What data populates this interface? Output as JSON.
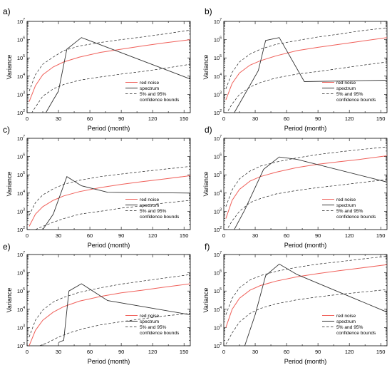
{
  "chart_data": [
    {
      "type": "line",
      "panel": "a)",
      "xlabel": "Period (month)",
      "ylabel": "Variance",
      "xlim": [
        0,
        156
      ],
      "xticks": [
        0,
        30,
        60,
        90,
        120,
        150
      ],
      "ylim_log10": [
        2,
        7
      ],
      "yscale": "log",
      "legend": [
        "red noise",
        "spectrum",
        "5% and 95%",
        "confidence bounds"
      ],
      "series": [
        {
          "name": "red noise",
          "x": [
            2,
            8,
            15,
            25,
            35,
            50,
            70,
            90,
            110,
            130,
            156
          ],
          "y": [
            400,
            3000,
            12000,
            32000,
            60000,
            110000,
            200000,
            300000,
            450000,
            650000,
            1000000
          ]
        },
        {
          "name": "spectrum",
          "x": [
            18,
            25,
            30,
            38,
            52,
            156
          ],
          "y": [
            100,
            500,
            1500,
            300000,
            1300000,
            7000
          ]
        },
        {
          "name": "5% bound",
          "x": [
            2,
            8,
            15,
            25,
            35,
            50,
            70,
            90,
            110,
            130,
            156
          ],
          "y": [
            60,
            200,
            800,
            2000,
            3500,
            6000,
            9000,
            13000,
            18000,
            26000,
            45000
          ]
        },
        {
          "name": "95% bound",
          "x": [
            2,
            8,
            15,
            25,
            35,
            50,
            70,
            90,
            110,
            130,
            156
          ],
          "y": [
            1500,
            12000,
            45000,
            110000,
            250000,
            450000,
            700000,
            1000000,
            1400000,
            2000000,
            3300000
          ]
        }
      ]
    },
    {
      "type": "line",
      "panel": "b)",
      "xlabel": "Period (month)",
      "ylabel": "Variance",
      "xlim": [
        0,
        156
      ],
      "xticks": [
        0,
        30,
        60,
        90,
        120,
        150
      ],
      "ylim_log10": [
        2,
        7
      ],
      "yscale": "log",
      "legend": [
        "red noise",
        "spectrum",
        "5% and 95%",
        "confidence bounds"
      ],
      "series": [
        {
          "name": "red noise",
          "x": [
            2,
            8,
            15,
            25,
            35,
            50,
            70,
            90,
            110,
            130,
            156
          ],
          "y": [
            500,
            4000,
            15000,
            40000,
            70000,
            130000,
            250000,
            380000,
            550000,
            800000,
            1300000
          ]
        },
        {
          "name": "spectrum",
          "x": [
            10,
            20,
            33,
            40,
            53,
            77,
            156
          ],
          "y": [
            100,
            1000,
            20000,
            900000,
            1300000,
            5000,
            6000
          ]
        },
        {
          "name": "5% bound",
          "x": [
            2,
            8,
            15,
            25,
            35,
            50,
            70,
            90,
            110,
            130,
            156
          ],
          "y": [
            80,
            300,
            1000,
            2500,
            4500,
            8000,
            13000,
            18000,
            26000,
            38000,
            60000
          ]
        },
        {
          "name": "95% bound",
          "x": [
            2,
            8,
            15,
            25,
            35,
            50,
            70,
            90,
            110,
            130,
            156
          ],
          "y": [
            2000,
            16000,
            60000,
            160000,
            300000,
            550000,
            900000,
            1400000,
            2000000,
            3000000,
            4500000
          ]
        }
      ]
    },
    {
      "type": "line",
      "panel": "c)",
      "xlabel": "Period (month)",
      "ylabel": "Variance",
      "xlim": [
        0,
        156
      ],
      "xticks": [
        0,
        30,
        60,
        90,
        120,
        150
      ],
      "ylim_log10": [
        2,
        7
      ],
      "yscale": "log",
      "legend": [
        "red noise",
        "spectrum",
        "5% and 95%",
        "confidence bounds"
      ],
      "series": [
        {
          "name": "red noise",
          "x": [
            2,
            8,
            15,
            25,
            35,
            50,
            70,
            90,
            110,
            130,
            156
          ],
          "y": [
            150,
            700,
            1800,
            4000,
            7000,
            12000,
            20000,
            30000,
            42000,
            58000,
            90000
          ]
        },
        {
          "name": "spectrum",
          "x": [
            15,
            25,
            38,
            52,
            77,
            156
          ],
          "y": [
            100,
            700,
            80000,
            25000,
            11000,
            10000
          ]
        },
        {
          "name": "5% bound",
          "x": [
            8,
            15,
            25,
            35,
            50,
            70,
            90,
            110,
            130,
            156
          ],
          "y": [
            100,
            150,
            250,
            400,
            700,
            1000,
            1500,
            2000,
            2800,
            4000
          ]
        },
        {
          "name": "95% bound",
          "x": [
            2,
            8,
            15,
            25,
            35,
            50,
            70,
            90,
            110,
            130,
            156
          ],
          "y": [
            600,
            3000,
            8000,
            17000,
            30000,
            50000,
            80000,
            110000,
            150000,
            200000,
            290000
          ]
        }
      ]
    },
    {
      "type": "line",
      "panel": "d)",
      "xlabel": "Period (month)",
      "ylabel": "Variance",
      "xlim": [
        0,
        156
      ],
      "xticks": [
        0,
        30,
        60,
        90,
        120,
        150
      ],
      "ylim_log10": [
        2,
        7
      ],
      "yscale": "log",
      "legend": [
        "red noise",
        "spectrum",
        "5% and 95%",
        "confidence bounds"
      ],
      "series": [
        {
          "name": "red noise",
          "x": [
            2,
            8,
            15,
            25,
            35,
            50,
            70,
            90,
            110,
            130,
            156
          ],
          "y": [
            400,
            4000,
            16000,
            45000,
            80000,
            140000,
            250000,
            380000,
            520000,
            700000,
            1100000
          ]
        },
        {
          "name": "spectrum",
          "x": [
            10,
            20,
            30,
            38,
            53,
            70,
            156
          ],
          "y": [
            100,
            1200,
            20000,
            200000,
            950000,
            700000,
            40000
          ]
        },
        {
          "name": "5% bound",
          "x": [
            2,
            8,
            15,
            25,
            35,
            50,
            70,
            90,
            110,
            130,
            156
          ],
          "y": [
            80,
            300,
            1000,
            3000,
            5000,
            9000,
            14000,
            20000,
            27000,
            37000,
            55000
          ]
        },
        {
          "name": "95% bound",
          "x": [
            2,
            8,
            15,
            25,
            35,
            50,
            70,
            90,
            110,
            130,
            156
          ],
          "y": [
            1800,
            15000,
            60000,
            160000,
            300000,
            500000,
            850000,
            1300000,
            1800000,
            2400000,
            3400000
          ]
        }
      ]
    },
    {
      "type": "line",
      "panel": "e)",
      "xlabel": "Period (month)",
      "ylabel": "Variance",
      "xlim": [
        0,
        156
      ],
      "xticks": [
        0,
        30,
        60,
        90,
        120,
        150
      ],
      "ylim_log10": [
        2,
        7
      ],
      "yscale": "log",
      "legend": [
        "red noise",
        "spectrum",
        "5% and 95%",
        "confidence bounds"
      ],
      "series": [
        {
          "name": "red noise",
          "x": [
            2,
            8,
            15,
            25,
            35,
            50,
            70,
            90,
            110,
            130,
            156
          ],
          "y": [
            100,
            700,
            2500,
            7000,
            14000,
            28000,
            50000,
            80000,
            110000,
            160000,
            250000
          ]
        },
        {
          "name": "spectrum",
          "x": [
            30,
            35,
            40,
            52,
            77,
            156
          ],
          "y": [
            150,
            200,
            100000,
            250000,
            30000,
            5000
          ]
        },
        {
          "name": "5% bound",
          "x": [
            12,
            20,
            30,
            40,
            55,
            70,
            90,
            110,
            130,
            156
          ],
          "y": [
            100,
            150,
            300,
            500,
            900,
            1400,
            2100,
            3000,
            4200,
            6000
          ]
        },
        {
          "name": "95% bound",
          "x": [
            2,
            8,
            15,
            25,
            35,
            50,
            70,
            90,
            110,
            130,
            156
          ],
          "y": [
            300,
            2500,
            9000,
            25000,
            45000,
            85000,
            150000,
            240000,
            350000,
            500000,
            800000
          ]
        }
      ]
    },
    {
      "type": "line",
      "panel": "f)",
      "xlabel": "Period (month)",
      "ylabel": "Variance",
      "xlim": [
        0,
        156
      ],
      "xticks": [
        0,
        30,
        60,
        90,
        120,
        150
      ],
      "ylim_log10": [
        2,
        7
      ],
      "yscale": "log",
      "legend": [
        "red noise",
        "spectrum",
        "5% and 95%",
        "confidence bounds"
      ],
      "series": [
        {
          "name": "red noise",
          "x": [
            2,
            8,
            15,
            25,
            35,
            50,
            70,
            90,
            110,
            130,
            156
          ],
          "y": [
            1000,
            10000,
            40000,
            110000,
            200000,
            350000,
            600000,
            900000,
            1300000,
            1800000,
            2800000
          ]
        },
        {
          "name": "spectrum",
          "x": [
            20,
            30,
            40,
            53,
            70,
            156
          ],
          "y": [
            100,
            5000,
            700000,
            3000000,
            800000,
            7000
          ]
        },
        {
          "name": "5% bound",
          "x": [
            2,
            8,
            15,
            25,
            35,
            50,
            70,
            90,
            110,
            130,
            156
          ],
          "y": [
            120,
            500,
            2000,
            6000,
            11000,
            20000,
            33000,
            48000,
            65000,
            85000,
            120000
          ]
        },
        {
          "name": "95% bound",
          "x": [
            2,
            8,
            15,
            25,
            35,
            50,
            70,
            90,
            110,
            130,
            156
          ],
          "y": [
            5000,
            40000,
            150000,
            400000,
            700000,
            1200000,
            2000000,
            3000000,
            4000000,
            5500000,
            8000000
          ]
        }
      ]
    }
  ]
}
